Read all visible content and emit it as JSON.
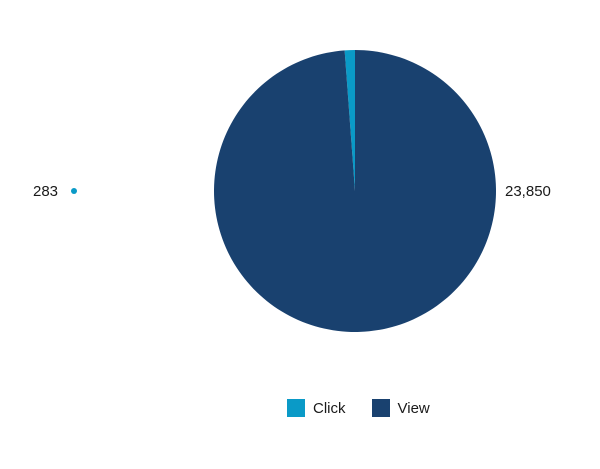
{
  "chart_data": {
    "type": "pie",
    "title": "",
    "categories": [
      "Click",
      "View"
    ],
    "values": [
      283,
      23850
    ],
    "data_labels": [
      "283",
      "23,850"
    ],
    "colors": [
      "#0a9ac7",
      "#19416f"
    ],
    "legend_position": "bottom-center",
    "legend": [
      {
        "label": "Click",
        "color": "#0a9ac7"
      },
      {
        "label": "View",
        "color": "#19416f"
      }
    ]
  }
}
